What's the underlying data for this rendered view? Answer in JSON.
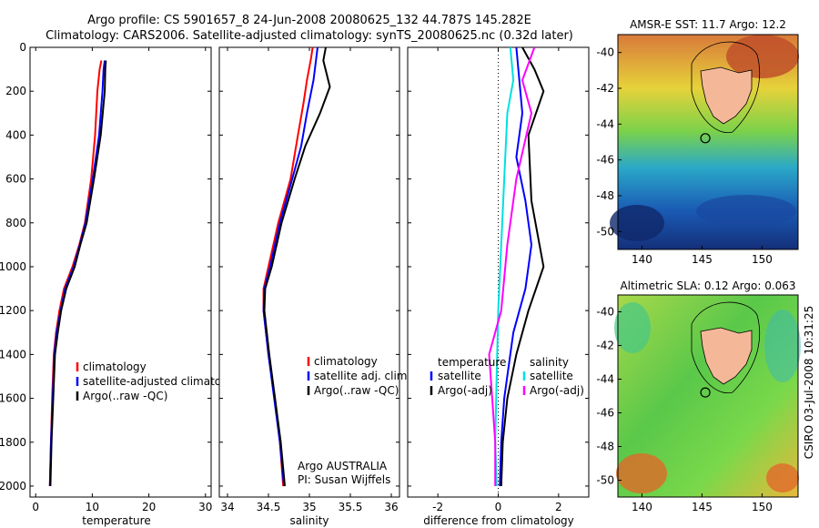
{
  "header": {
    "line1": "Argo profile: CS 5901657_8 24-Jun-2008 20080625_132 44.787S 145.282E",
    "line2": "Climatology: CARS2006. Satellite-adjusted climatology: synTS_20080625.nc (0.32d later)"
  },
  "footer": {
    "credit": "CSIRO 03-Jul-2008 10:31:25",
    "institution": "Argo AUSTRALIA",
    "pi": "PI: Susan Wijffels"
  },
  "chart_data": [
    {
      "type": "line",
      "id": "temperature",
      "xlabel": "temperature",
      "ylabel": "",
      "xlim": [
        -1,
        31
      ],
      "ylim": [
        2050,
        0
      ],
      "xticks": [
        0,
        10,
        20,
        30
      ],
      "yticks": [
        0,
        200,
        400,
        600,
        800,
        1000,
        1200,
        1400,
        1600,
        1800,
        2000
      ],
      "legend": [
        "climatology",
        "satellite-adjusted climatology",
        "Argo(..raw -QC)"
      ],
      "series": [
        {
          "color": "#ff0000",
          "points": [
            [
              11.6,
              60
            ],
            [
              11.3,
              100
            ],
            [
              10.9,
              200
            ],
            [
              10.5,
              400
            ],
            [
              9.8,
              600
            ],
            [
              8.7,
              800
            ],
            [
              7.7,
              900
            ],
            [
              6.5,
              1000
            ],
            [
              5.0,
              1100
            ],
            [
              4.2,
              1200
            ],
            [
              3.6,
              1300
            ],
            [
              3.2,
              1400
            ],
            [
              2.9,
              1600
            ],
            [
              2.7,
              1800
            ],
            [
              2.5,
              2000
            ]
          ]
        },
        {
          "color": "#0000ff",
          "points": [
            [
              12.2,
              60
            ],
            [
              12.0,
              100
            ],
            [
              11.8,
              200
            ],
            [
              11.2,
              400
            ],
            [
              10.1,
              600
            ],
            [
              8.8,
              800
            ],
            [
              7.8,
              900
            ],
            [
              6.7,
              1000
            ],
            [
              5.2,
              1100
            ],
            [
              4.4,
              1200
            ],
            [
              3.7,
              1300
            ],
            [
              3.3,
              1400
            ],
            [
              3.0,
              1600
            ],
            [
              2.7,
              1800
            ],
            [
              2.5,
              2000
            ]
          ]
        },
        {
          "color": "#000000",
          "points": [
            [
              12.4,
              60
            ],
            [
              12.3,
              100
            ],
            [
              12.2,
              200
            ],
            [
              11.5,
              400
            ],
            [
              10.3,
              600
            ],
            [
              9.0,
              800
            ],
            [
              7.9,
              900
            ],
            [
              6.9,
              1000
            ],
            [
              5.4,
              1100
            ],
            [
              4.5,
              1200
            ],
            [
              3.9,
              1300
            ],
            [
              3.4,
              1400
            ],
            [
              3.1,
              1600
            ],
            [
              2.8,
              1800
            ],
            [
              2.6,
              2000
            ]
          ]
        }
      ]
    },
    {
      "type": "line",
      "id": "salinity",
      "xlabel": "salinity",
      "ylabel": "",
      "xlim": [
        33.9,
        36.1
      ],
      "ylim": [
        2050,
        0
      ],
      "xticks": [
        34,
        34.5,
        35,
        35.5,
        36
      ],
      "legend": [
        "climatology",
        "satellite adj. clim.",
        "Argo(..raw -QC)"
      ],
      "series": [
        {
          "color": "#ff0000",
          "points": [
            [
              35.04,
              0
            ],
            [
              35.02,
              50
            ],
            [
              34.97,
              150
            ],
            [
              34.93,
              250
            ],
            [
              34.86,
              400
            ],
            [
              34.77,
              600
            ],
            [
              34.62,
              800
            ],
            [
              34.5,
              1000
            ],
            [
              34.44,
              1100
            ],
            [
              34.44,
              1200
            ],
            [
              34.5,
              1400
            ],
            [
              34.58,
              1600
            ],
            [
              34.64,
              1800
            ],
            [
              34.68,
              2000
            ]
          ]
        },
        {
          "color": "#0000ff",
          "points": [
            [
              35.1,
              0
            ],
            [
              35.08,
              60
            ],
            [
              35.05,
              150
            ],
            [
              34.97,
              300
            ],
            [
              34.9,
              450
            ],
            [
              34.79,
              600
            ],
            [
              34.64,
              800
            ],
            [
              34.52,
              1000
            ],
            [
              34.45,
              1100
            ],
            [
              34.44,
              1200
            ],
            [
              34.5,
              1400
            ],
            [
              34.57,
              1600
            ],
            [
              34.64,
              1800
            ],
            [
              34.69,
              2000
            ]
          ]
        },
        {
          "color": "#000000",
          "points": [
            [
              35.2,
              0
            ],
            [
              35.17,
              60
            ],
            [
              35.25,
              180
            ],
            [
              35.13,
              300
            ],
            [
              34.95,
              450
            ],
            [
              34.82,
              600
            ],
            [
              34.66,
              800
            ],
            [
              34.54,
              1000
            ],
            [
              34.46,
              1100
            ],
            [
              34.45,
              1200
            ],
            [
              34.51,
              1400
            ],
            [
              34.58,
              1600
            ],
            [
              34.65,
              1800
            ],
            [
              34.7,
              2000
            ]
          ]
        }
      ]
    },
    {
      "type": "line",
      "id": "difference",
      "xlabel": "difference from climatology",
      "ylabel": "",
      "xlim": [
        -3,
        3
      ],
      "ylim": [
        2050,
        0
      ],
      "xticks": [
        -2,
        0,
        2
      ],
      "legend": [
        "temperature",
        "satellite",
        "Argo(-adj)",
        "salinity",
        "satellite",
        "Argo(-adj)"
      ],
      "series": [
        {
          "color": "#000000",
          "dash": true,
          "points": [
            [
              0,
              0
            ],
            [
              0,
              2050
            ]
          ]
        },
        {
          "color": "#0000ff",
          "points": [
            [
              0.6,
              0
            ],
            [
              0.7,
              150
            ],
            [
              0.8,
              300
            ],
            [
              0.6,
              500
            ],
            [
              0.9,
              700
            ],
            [
              1.1,
              900
            ],
            [
              0.9,
              1100
            ],
            [
              0.5,
              1300
            ],
            [
              0.2,
              1600
            ],
            [
              0.1,
              1800
            ],
            [
              0.05,
              2000
            ]
          ]
        },
        {
          "color": "#000000",
          "points": [
            [
              0.8,
              0
            ],
            [
              1.2,
              100
            ],
            [
              1.5,
              200
            ],
            [
              1.0,
              400
            ],
            [
              1.1,
              700
            ],
            [
              1.5,
              1000
            ],
            [
              1.0,
              1200
            ],
            [
              0.6,
              1400
            ],
            [
              0.3,
              1600
            ],
            [
              0.15,
              1800
            ],
            [
              0.1,
              2000
            ]
          ]
        },
        {
          "color": "#00e0e0",
          "points": [
            [
              0.4,
              0
            ],
            [
              0.5,
              150
            ],
            [
              0.3,
              300
            ],
            [
              0.2,
              600
            ],
            [
              0.1,
              900
            ],
            [
              0.0,
              1200
            ],
            [
              -0.05,
              1500
            ],
            [
              -0.1,
              1800
            ],
            [
              -0.05,
              2000
            ]
          ]
        },
        {
          "color": "#ff00ff",
          "points": [
            [
              1.2,
              0
            ],
            [
              0.8,
              150
            ],
            [
              1.1,
              300
            ],
            [
              0.6,
              600
            ],
            [
              0.3,
              900
            ],
            [
              0.1,
              1200
            ],
            [
              -0.3,
              1400
            ],
            [
              -0.2,
              1600
            ],
            [
              -0.1,
              1800
            ],
            [
              -0.1,
              2000
            ]
          ]
        }
      ]
    },
    {
      "type": "heatmap",
      "id": "sst-map",
      "title": "AMSR-E SST: 11.7 Argo: 12.2",
      "xlim": [
        138,
        153
      ],
      "ylim": [
        -51,
        -39
      ],
      "xticks": [
        140,
        145,
        150
      ],
      "yticks": [
        -40,
        -42,
        -44,
        -46,
        -48,
        -50
      ],
      "marker": [
        145.282,
        -44.787
      ]
    },
    {
      "type": "heatmap",
      "id": "sla-map",
      "title": "Altimetric SLA: 0.12 Argo: 0.063",
      "xlim": [
        138,
        153
      ],
      "ylim": [
        -51,
        -39
      ],
      "xticks": [
        140,
        145,
        150
      ],
      "yticks": [
        -40,
        -42,
        -44,
        -46,
        -48,
        -50
      ],
      "marker": [
        145.282,
        -44.787
      ]
    }
  ]
}
